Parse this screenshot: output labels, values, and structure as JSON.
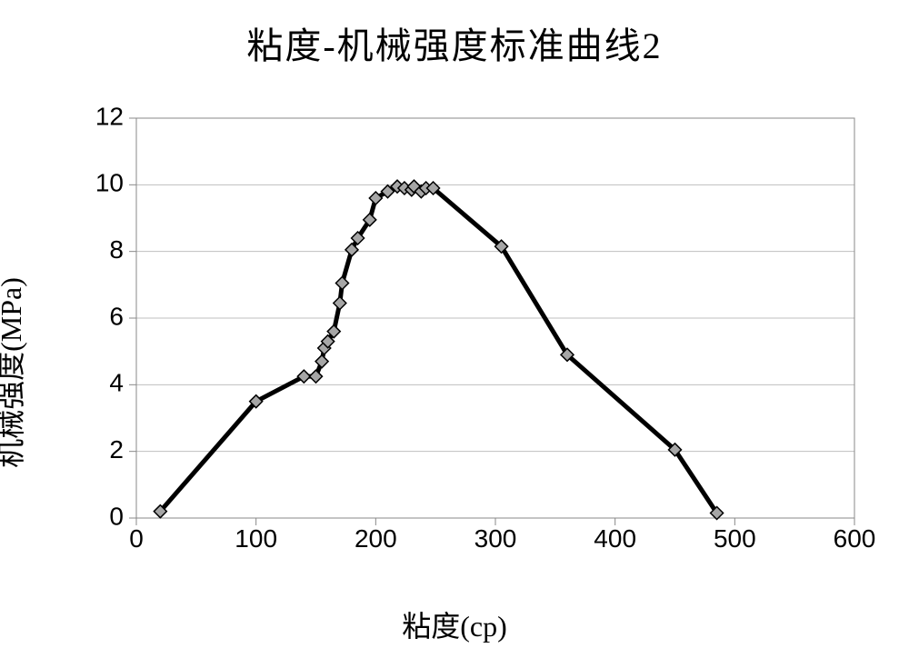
{
  "title": "粘度-机械强度标准曲线2",
  "chart": {
    "type": "line-scatter",
    "xlabel": "粘度(cp)",
    "ylabel": "机械强度(MPa)",
    "xlim": [
      0,
      600
    ],
    "ylim": [
      0,
      12
    ],
    "xtick_step": 100,
    "ytick_step": 2,
    "xticks": [
      0,
      100,
      200,
      300,
      400,
      500,
      600
    ],
    "yticks": [
      0,
      2,
      4,
      6,
      8,
      10,
      12
    ],
    "background_color": "#ffffff",
    "grid_color": "#bfbfbf",
    "grid_width": 1,
    "axis_color": "#888888",
    "axis_width": 1,
    "tick_length_outer": 8,
    "tick_color": "#888888",
    "line_color": "#000000",
    "line_width": 5,
    "marker_shape": "diamond",
    "marker_fill": "#a6a6a6",
    "marker_stroke": "#000000",
    "marker_size": 14,
    "title_fontsize": 40,
    "label_fontsize": 32,
    "tick_fontsize": 28,
    "series": {
      "x": [
        20,
        100,
        140,
        150,
        155,
        157,
        160,
        165,
        170,
        172,
        180,
        185,
        195,
        200,
        210,
        218,
        224,
        230,
        232,
        238,
        242,
        248,
        305,
        360,
        450,
        485
      ],
      "y": [
        0.2,
        3.5,
        4.25,
        4.25,
        4.7,
        5.1,
        5.3,
        5.6,
        6.45,
        7.05,
        8.05,
        8.4,
        8.95,
        9.6,
        9.8,
        9.95,
        9.9,
        9.85,
        9.95,
        9.8,
        9.9,
        9.9,
        8.15,
        4.9,
        2.05,
        0.15
      ]
    }
  }
}
